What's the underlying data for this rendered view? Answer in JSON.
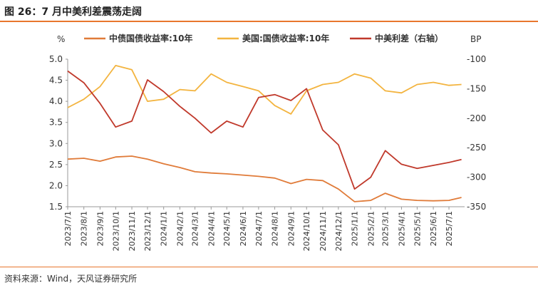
{
  "header": {
    "title": "图 26：7 月中美利差震荡走阔"
  },
  "footer": {
    "source": "资料来源：Wind，天风证券研究所"
  },
  "colors": {
    "accent": "#e8762d",
    "cn": "#e07b39",
    "us": "#f3b43f",
    "spread": "#c0392b"
  },
  "chart_data": {
    "type": "line",
    "left_axis": {
      "unit_label": "%",
      "ylim": [
        1.5,
        5.0
      ],
      "ticks": [
        "1.5",
        "2.0",
        "2.5",
        "3.0",
        "3.5",
        "4.0",
        "4.5",
        "5.0"
      ]
    },
    "right_axis": {
      "unit_label": "BP",
      "ylim": [
        -350,
        -100
      ],
      "ticks": [
        "-350",
        "-300",
        "-250",
        "-200",
        "-150",
        "-100"
      ]
    },
    "x_ticks": [
      "2023/7/1",
      "2023/8/1",
      "2023/9/1",
      "2023/10/1",
      "2023/11/1",
      "2023/12/1",
      "2024/1/1",
      "2024/2/1",
      "2024/3/1",
      "2024/4/1",
      "2024/5/1",
      "2024/6/1",
      "2024/7/1",
      "2024/8/1",
      "2024/9/1",
      "2024/10/1",
      "2024/11/1",
      "2024/12/1",
      "2025/1/1",
      "2025/2/1",
      "2025/3/1",
      "2025/4/1",
      "2025/5/1",
      "2025/6/1",
      "2025/7/1"
    ],
    "grid": false,
    "legend_position": "top",
    "series": [
      {
        "name": "中债国债收益率:10年",
        "axis": "left",
        "color": "#e07b39",
        "x": [
          "2023/7/1",
          "2023/8/1",
          "2023/9/1",
          "2023/10/1",
          "2023/11/1",
          "2023/12/1",
          "2024/1/1",
          "2024/2/1",
          "2024/3/1",
          "2024/4/1",
          "2024/5/1",
          "2024/6/1",
          "2024/7/1",
          "2024/8/1",
          "2024/9/1",
          "2024/10/1",
          "2024/11/1",
          "2024/12/1",
          "2025/1/1",
          "2025/2/1",
          "2025/3/1",
          "2025/4/1",
          "2025/5/1",
          "2025/6/1",
          "2025/7/1",
          "2025/7/25"
        ],
        "values": [
          2.63,
          2.65,
          2.58,
          2.68,
          2.7,
          2.63,
          2.52,
          2.43,
          2.33,
          2.3,
          2.28,
          2.25,
          2.22,
          2.18,
          2.05,
          2.15,
          2.12,
          1.92,
          1.62,
          1.65,
          1.82,
          1.68,
          1.65,
          1.64,
          1.65,
          1.72
        ]
      },
      {
        "name": "美国:国债收益率:10年",
        "axis": "left",
        "color": "#f3b43f",
        "x": [
          "2023/7/1",
          "2023/8/1",
          "2023/9/1",
          "2023/10/1",
          "2023/11/1",
          "2023/12/1",
          "2024/1/1",
          "2024/2/1",
          "2024/3/1",
          "2024/4/1",
          "2024/5/1",
          "2024/6/1",
          "2024/7/1",
          "2024/8/1",
          "2024/9/1",
          "2024/10/1",
          "2024/11/1",
          "2024/12/1",
          "2025/1/1",
          "2025/2/1",
          "2025/3/1",
          "2025/4/1",
          "2025/5/1",
          "2025/6/1",
          "2025/7/1",
          "2025/7/25"
        ],
        "values": [
          3.85,
          4.05,
          4.35,
          4.85,
          4.75,
          4.0,
          4.05,
          4.28,
          4.25,
          4.65,
          4.45,
          4.35,
          4.25,
          3.9,
          3.7,
          4.25,
          4.4,
          4.45,
          4.65,
          4.55,
          4.25,
          4.2,
          4.4,
          4.45,
          4.38,
          4.4
        ]
      },
      {
        "name": "中美利差（右轴）",
        "axis": "right",
        "color": "#c0392b",
        "x": [
          "2023/7/1",
          "2023/8/1",
          "2023/9/1",
          "2023/10/1",
          "2023/11/1",
          "2023/12/1",
          "2024/1/1",
          "2024/2/1",
          "2024/3/1",
          "2024/4/1",
          "2024/5/1",
          "2024/6/1",
          "2024/7/1",
          "2024/8/1",
          "2024/9/1",
          "2024/10/1",
          "2024/11/1",
          "2024/12/1",
          "2025/1/1",
          "2025/2/1",
          "2025/3/1",
          "2025/4/1",
          "2025/5/1",
          "2025/6/1",
          "2025/7/1",
          "2025/7/25"
        ],
        "values": [
          -120,
          -140,
          -175,
          -215,
          -205,
          -135,
          -155,
          -180,
          -200,
          -225,
          -205,
          -215,
          -165,
          -160,
          -170,
          -150,
          -220,
          -245,
          -320,
          -300,
          -255,
          -278,
          -285,
          -280,
          -275,
          -270
        ]
      }
    ]
  }
}
